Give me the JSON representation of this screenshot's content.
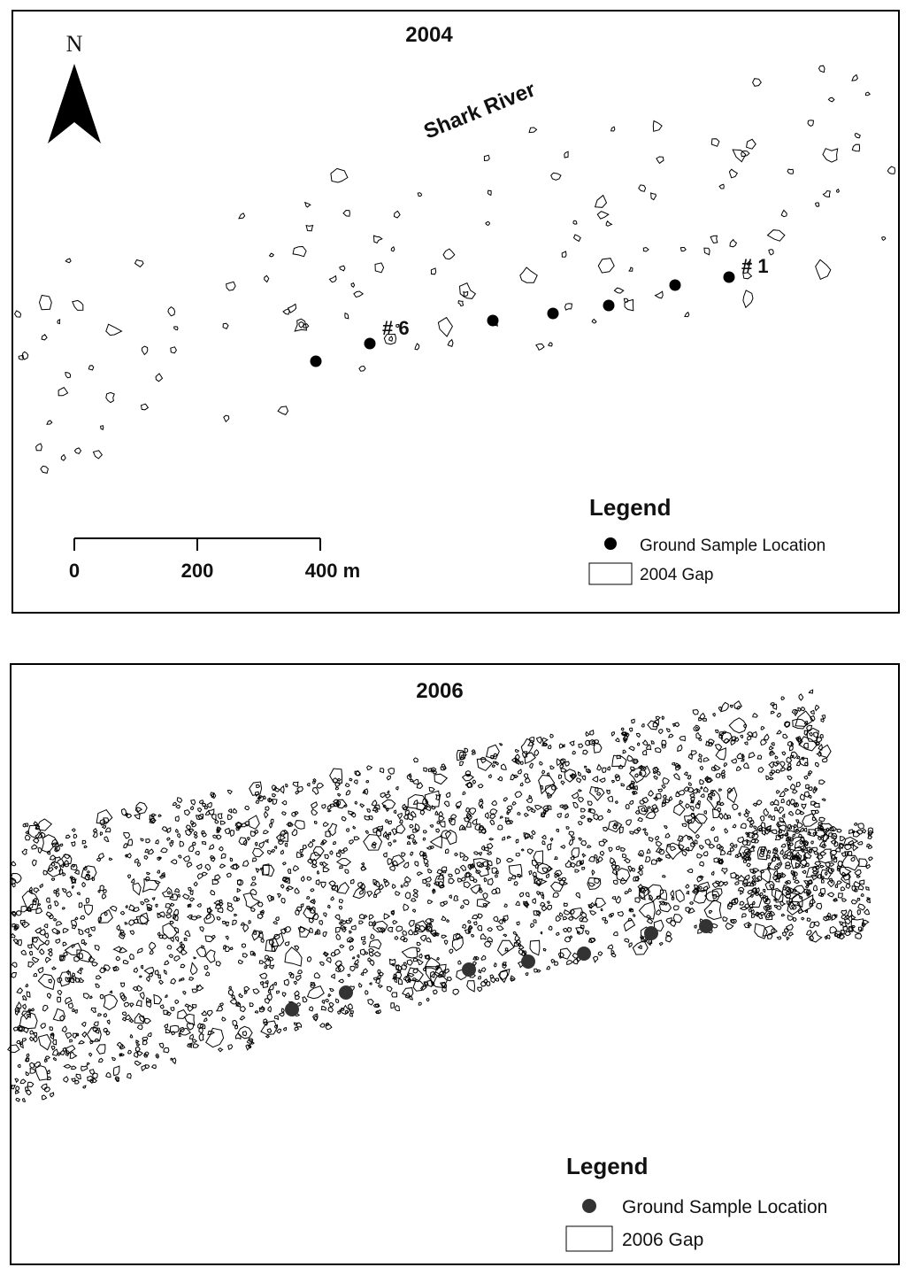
{
  "maps": [
    {
      "title": "2004",
      "north": "N",
      "river_label": "Shark River",
      "sample_labels": [
        "# 6",
        "# 1"
      ],
      "scale_bar": [
        "0",
        "200",
        "400 m"
      ],
      "legend": {
        "title": "Legend",
        "items": [
          "Ground Sample Location",
          "2004 Gap"
        ]
      }
    },
    {
      "title": "2006",
      "legend": {
        "title": "Legend",
        "items": [
          "Ground Sample Location",
          "2006 Gap"
        ]
      }
    }
  ]
}
